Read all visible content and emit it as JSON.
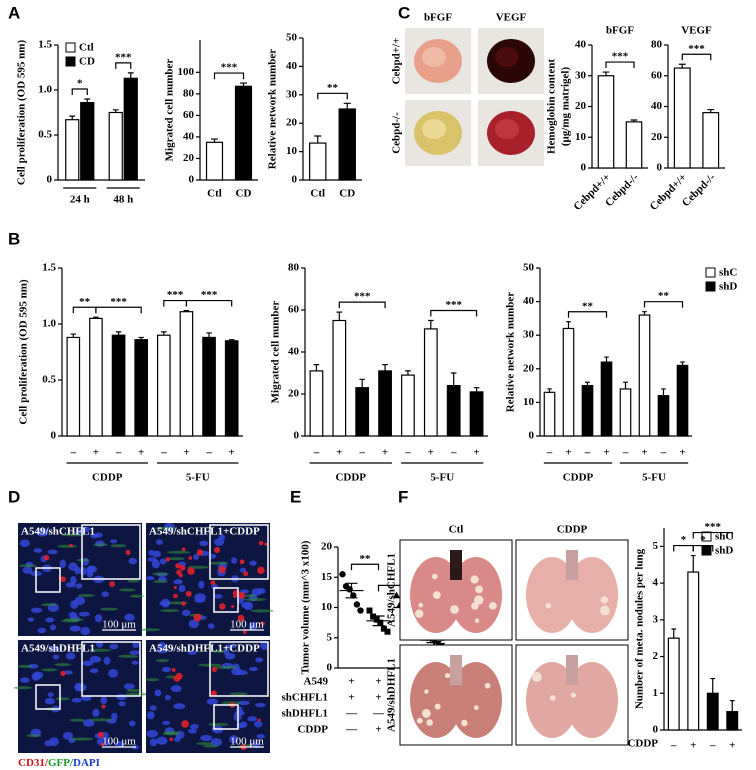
{
  "panels": [
    "A",
    "B",
    "C",
    "D",
    "E",
    "F"
  ],
  "photo_panels": {
    "C": {
      "columns": [
        "bFGF",
        "VEGF"
      ],
      "rows": [
        "Cebpd+/+",
        "Cebpd-/-"
      ]
    },
    "D": {
      "labels": [
        "A549/shCHFL1",
        "A549/shCHFL1+CDDP",
        "A549/shDHFL1",
        "A549/shDHFL1+CDDP"
      ],
      "scale_bar": "100 μm",
      "stain": [
        {
          "text": "CD31/",
          "color": "#d0101a"
        },
        {
          "text": "GFP/",
          "color": "#1a9a2a"
        },
        {
          "text": "DAPI",
          "color": "#1a3ad0"
        }
      ]
    },
    "F": {
      "columns": [
        "Ctl",
        "CDDP"
      ],
      "rows": [
        "A549/shCHFL1",
        "A549/shDHFL1"
      ]
    }
  },
  "chart_data": [
    {
      "type": "bar",
      "ylabel": "Cell proliferation (OD 595 nm)",
      "ylim": [
        0,
        1.5
      ],
      "yticks": [
        0,
        0.5,
        {
          "value": 1,
          "label": "1.0"
        },
        1.5
      ],
      "categories": [
        "24 h",
        "48 h"
      ],
      "series": [
        {
          "name": "Ctl",
          "color": "#ffffff",
          "values": [
            0.67,
            0.75
          ],
          "errors": [
            0.04,
            0.03
          ]
        },
        {
          "name": "CD",
          "color": "#000000",
          "values": [
            0.86,
            1.13
          ],
          "errors": [
            0.04,
            0.06
          ]
        }
      ],
      "significance": [
        {
          "text": "*",
          "bars": [
            0,
            1
          ]
        },
        {
          "text": "***",
          "bars": [
            2,
            3
          ]
        }
      ]
    },
    {
      "type": "bar",
      "ylabel": "Migrated cell number",
      "ylim": [
        0,
        130
      ],
      "yticks": [
        0,
        20,
        40,
        60,
        80,
        100
      ],
      "categories": [
        "Ctl",
        "CD"
      ],
      "values": [
        35,
        87
      ],
      "errors": [
        3,
        3
      ],
      "colors": [
        "#ffffff",
        "#000000"
      ],
      "significance": [
        {
          "text": "***",
          "bars": [
            0,
            1
          ]
        }
      ]
    },
    {
      "type": "bar",
      "ylabel": "Relative network number",
      "ylim": [
        0,
        50
      ],
      "yticks": [
        0,
        10,
        20,
        30,
        40,
        50
      ],
      "categories": [
        "Ctl",
        "CD"
      ],
      "values": [
        13,
        25
      ],
      "errors": [
        2.5,
        2
      ],
      "colors": [
        "#ffffff",
        "#000000"
      ],
      "significance": [
        {
          "text": "**",
          "bars": [
            0,
            1
          ]
        }
      ]
    },
    {
      "type": "bar",
      "title": "bFGF",
      "ylabel": "Hemoglobin content",
      "ylabel2": "(μg/mg matrigel)",
      "ylim": [
        0,
        40
      ],
      "yticks": [
        0,
        10,
        20,
        30,
        40
      ],
      "categories": [
        "Cebpd+/+",
        "Cebpd-/-"
      ],
      "values": [
        30,
        15
      ],
      "errors": [
        1.2,
        0.6
      ],
      "colors": [
        "#ffffff",
        "#ffffff"
      ],
      "significance": [
        {
          "text": "***",
          "bars": [
            0,
            1
          ]
        }
      ]
    },
    {
      "type": "bar",
      "title": "VEGF",
      "ylim": [
        0,
        80
      ],
      "yticks": [
        0,
        20,
        40,
        60,
        80
      ],
      "categories": [
        "Cebpd+/+",
        "Cebpd-/-"
      ],
      "values": [
        65,
        36
      ],
      "errors": [
        2.5,
        2
      ],
      "colors": [
        "#ffffff",
        "#ffffff"
      ],
      "significance": [
        {
          "text": "***",
          "bars": [
            0,
            1
          ]
        }
      ]
    },
    {
      "type": "bar",
      "ylabel": "Cell proliferation (OD 595 nm)",
      "ylim": [
        0,
        1.5
      ],
      "yticks": [
        0,
        0.5,
        {
          "value": 1,
          "label": "1.0"
        },
        1.5
      ],
      "categories": [
        "–",
        "+",
        "–",
        "+",
        "–",
        "+",
        "–",
        "+"
      ],
      "groups": [
        "CDDP",
        "5-FU"
      ],
      "values": [
        0.88,
        1.05,
        0.9,
        0.86,
        0.9,
        1.11,
        0.88,
        0.85
      ],
      "errors": [
        0.03,
        0.01,
        0.03,
        0.02,
        0.03,
        0.01,
        0.04,
        0.01
      ],
      "colors": [
        "#ffffff",
        "#ffffff",
        "#000000",
        "#000000",
        "#ffffff",
        "#ffffff",
        "#000000",
        "#000000"
      ],
      "significance": [
        {
          "text": "**",
          "bars": [
            0,
            1
          ]
        },
        {
          "text": "***",
          "bars": [
            1,
            3
          ]
        },
        {
          "text": "***",
          "bars": [
            4,
            5
          ]
        },
        {
          "text": "***",
          "bars": [
            5,
            7
          ]
        }
      ]
    },
    {
      "type": "bar",
      "ylabel": "Migrated cell number",
      "ylim": [
        0,
        80
      ],
      "yticks": [
        0,
        20,
        40,
        60,
        80
      ],
      "categories": [
        "–",
        "+",
        "–",
        "+",
        "–",
        "+",
        "–",
        "+"
      ],
      "groups": [
        "CDDP",
        "5-FU"
      ],
      "values": [
        31,
        55,
        23,
        31,
        29,
        51,
        24,
        21
      ],
      "errors": [
        3,
        4,
        4,
        3,
        2,
        4,
        6,
        2
      ],
      "colors": [
        "#ffffff",
        "#ffffff",
        "#000000",
        "#000000",
        "#ffffff",
        "#ffffff",
        "#000000",
        "#000000"
      ],
      "significance": [
        {
          "text": "***",
          "bars": [
            1,
            3
          ]
        },
        {
          "text": "***",
          "bars": [
            5,
            7
          ]
        }
      ]
    },
    {
      "type": "bar",
      "ylabel": "Relative network number",
      "ylim": [
        0,
        50
      ],
      "yticks": [
        0,
        10,
        20,
        30,
        40,
        50
      ],
      "categories": [
        "–",
        "+",
        "–",
        "+",
        "–",
        "+",
        "–",
        "+"
      ],
      "groups": [
        "CDDP",
        "5-FU"
      ],
      "values": [
        13,
        32,
        15,
        22,
        14,
        36,
        12,
        21
      ],
      "errors": [
        1,
        2,
        1,
        1.5,
        2,
        1,
        2,
        1
      ],
      "colors": [
        "#ffffff",
        "#ffffff",
        "#000000",
        "#000000",
        "#ffffff",
        "#ffffff",
        "#000000",
        "#000000"
      ],
      "legend": [
        {
          "name": "shC",
          "color": "#ffffff"
        },
        {
          "name": "shD",
          "color": "#000000"
        }
      ],
      "significance": [
        {
          "text": "**",
          "bars": [
            1,
            3
          ]
        },
        {
          "text": "**",
          "bars": [
            5,
            7
          ]
        }
      ]
    },
    {
      "type": "scatter",
      "ylabel": "Tumor volume (mm^3 x100)",
      "ylim": [
        0,
        20
      ],
      "yticks": [
        0,
        5,
        10,
        15,
        20
      ],
      "markers": [
        "circle",
        "square",
        "triangle-up",
        "triangle-down"
      ],
      "groups": [
        {
          "values": [
            15.5,
            13.5,
            13,
            12,
            10.5,
            9.5
          ],
          "mean": 12.8,
          "error": 1.2
        },
        {
          "values": [
            9.5,
            8.5,
            8,
            7.5,
            6.5,
            6
          ],
          "mean": 7.8,
          "error": 0.8
        },
        {
          "values": [
            12,
            10.5,
            10,
            9.5,
            9,
            8.5
          ],
          "mean": 10,
          "error": 0.6
        },
        {
          "values": [
            5.5,
            5,
            4.8,
            4.3,
            4,
            3.7
          ],
          "mean": 4.6,
          "error": 0.4
        }
      ],
      "conditions": [
        {
          "label": "A549",
          "values": [
            "+",
            "+",
            "+",
            "+"
          ]
        },
        {
          "label": "shCHFL1",
          "values": [
            "+",
            "+",
            "—",
            "—"
          ]
        },
        {
          "label": "shDHFL1",
          "values": [
            "—",
            "—",
            "+",
            "+"
          ]
        },
        {
          "label": "CDDP",
          "values": [
            "—",
            "+",
            "—",
            "+"
          ]
        }
      ],
      "significance": [
        {
          "text": "**",
          "bars": [
            0,
            1
          ]
        },
        {
          "text": "*",
          "bars": [
            1,
            3
          ]
        }
      ]
    },
    {
      "type": "bar",
      "ylabel": "Number of meta. nodules per lung",
      "ylim": [
        0,
        5.5
      ],
      "yticks": [
        0,
        1,
        2,
        3,
        4,
        5
      ],
      "categories": [
        "–",
        "+",
        "–",
        "+"
      ],
      "category_label": "CDDP",
      "values": [
        2.5,
        4.3,
        1.0,
        0.5
      ],
      "errors": [
        0.25,
        0.45,
        0.4,
        0.3
      ],
      "colors": [
        "#ffffff",
        "#ffffff",
        "#000000",
        "#000000"
      ],
      "legend": [
        {
          "name": "shC",
          "color": "#ffffff"
        },
        {
          "name": "shD",
          "color": "#000000"
        }
      ],
      "significance": [
        {
          "text": "*",
          "bars": [
            0,
            1
          ]
        },
        {
          "text": "*",
          "bars": [
            1,
            2
          ]
        },
        {
          "text": "***",
          "bars": [
            1,
            3
          ]
        }
      ]
    }
  ]
}
